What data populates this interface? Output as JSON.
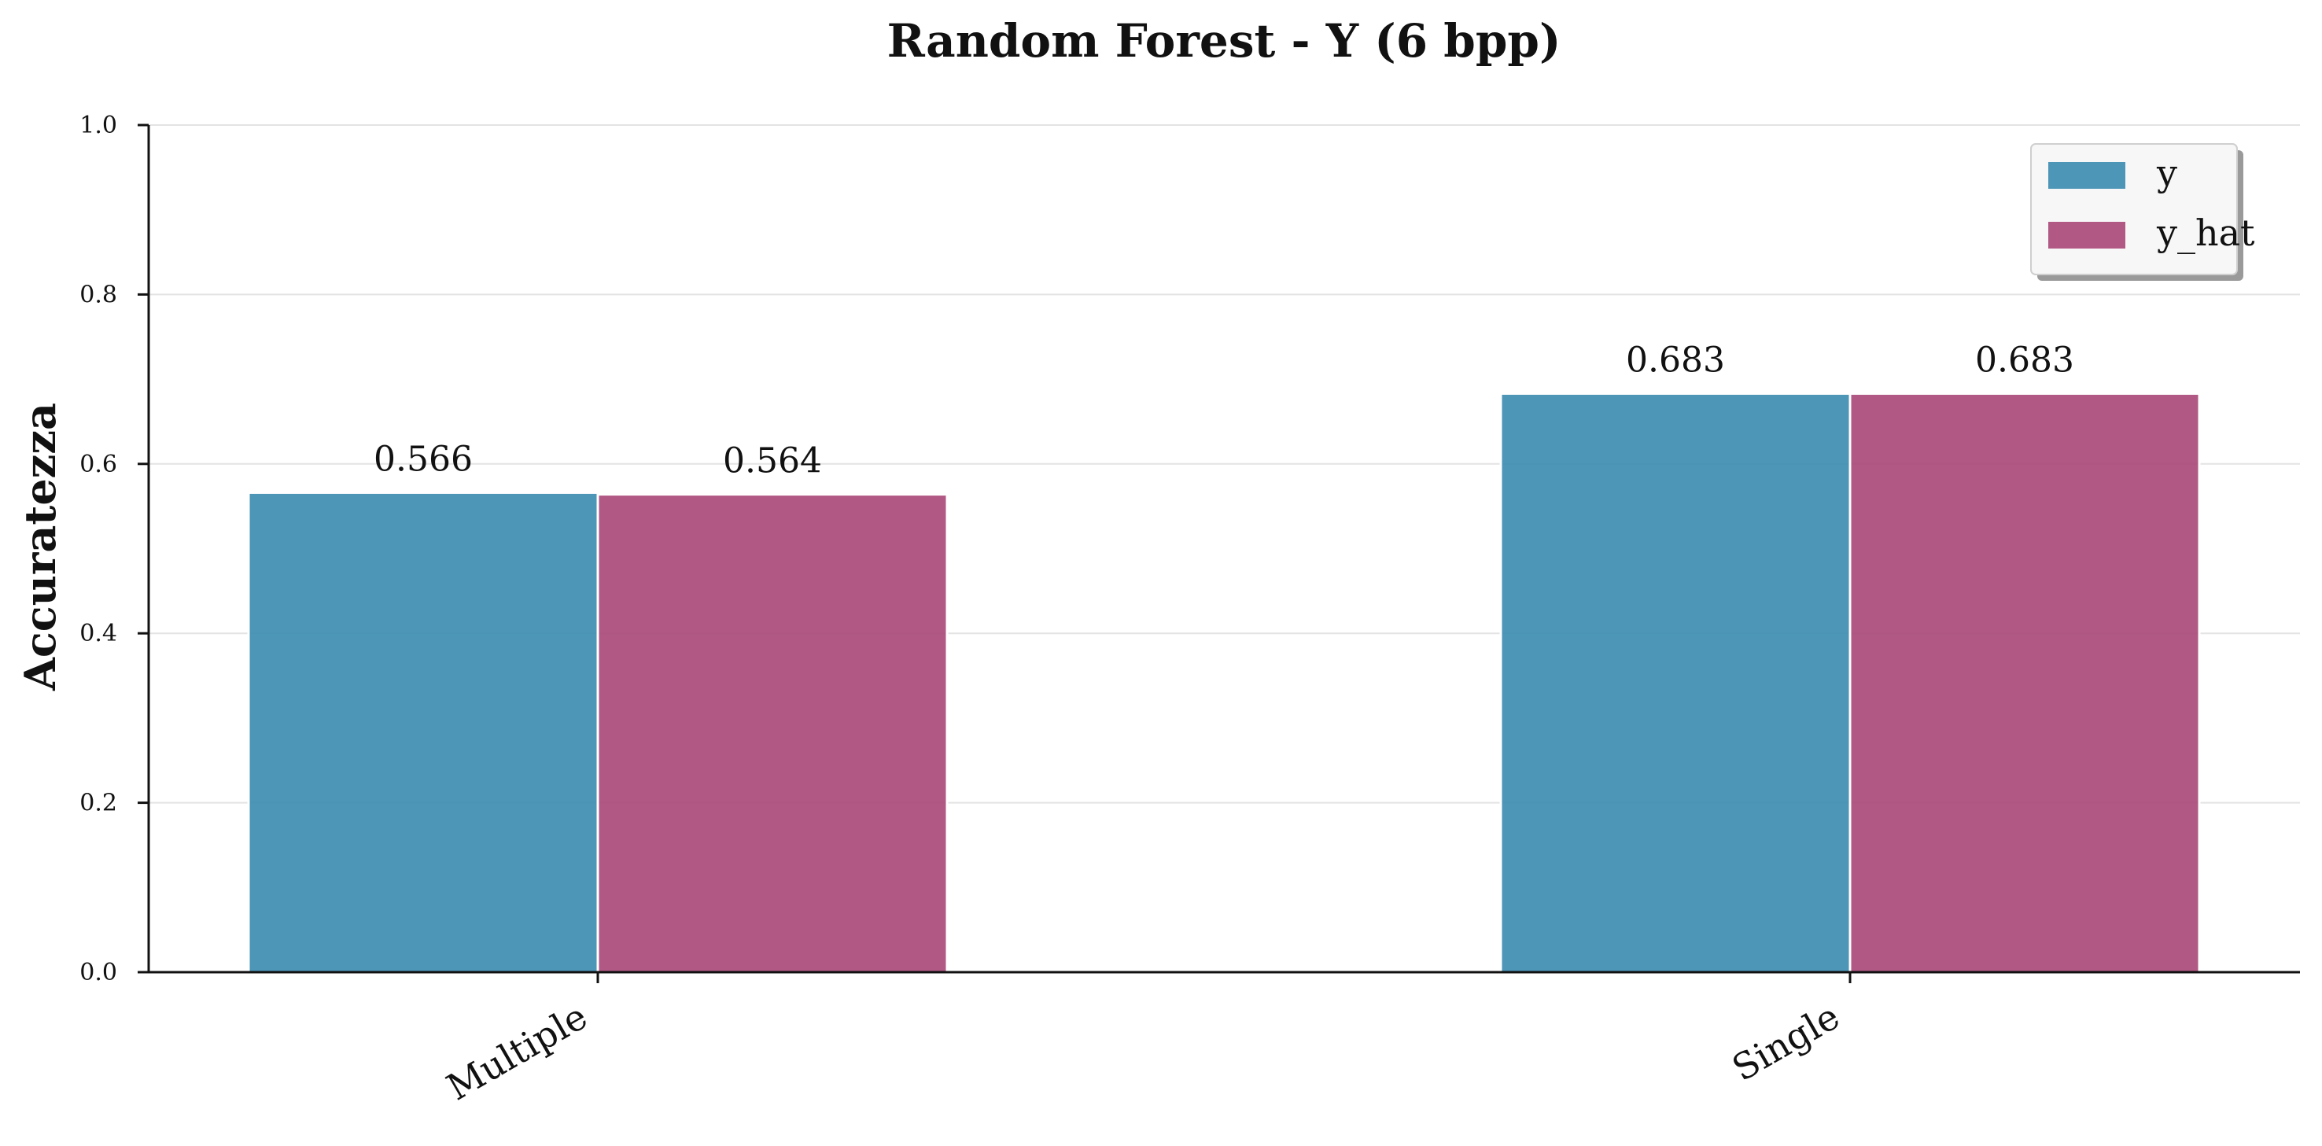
{
  "chart_data": {
    "type": "bar",
    "title": "Random Forest - Y (6 bpp)",
    "xlabel": "",
    "ylabel": "Accuratezza",
    "ylim": [
      0,
      1.0
    ],
    "yticks": [
      "0.0",
      "0.2",
      "0.4",
      "0.6",
      "0.8",
      "1.0"
    ],
    "categories": [
      "Multiple",
      "Single"
    ],
    "series": [
      {
        "name": "y",
        "values": [
          0.566,
          0.683
        ],
        "labels": [
          "0.566",
          "0.683"
        ],
        "color": "#3a8bb0"
      },
      {
        "name": "y_hat",
        "values": [
          0.564,
          0.683
        ],
        "labels": [
          "0.564",
          "0.683"
        ],
        "color": "#a84677"
      }
    ],
    "grid": "horizontal",
    "legend": "top-right"
  }
}
